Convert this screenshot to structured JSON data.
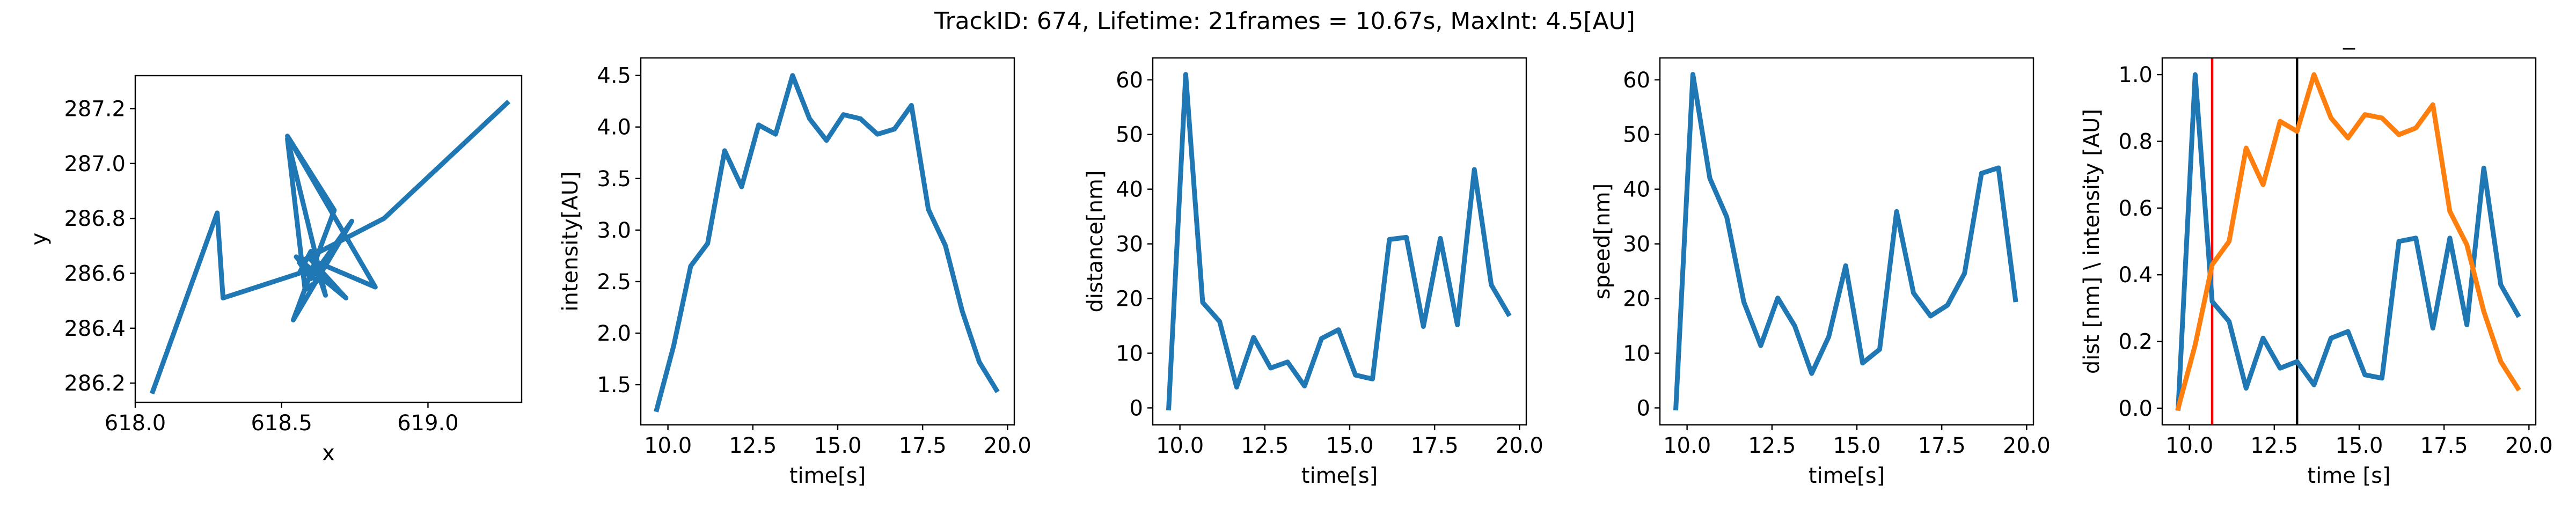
{
  "figure_title": "TrackID: 674, Lifetime: 21frames = 10.67s, MaxInt: 4.5[AU]",
  "colors": {
    "blue": "#1f77b4",
    "orange": "#ff7f0e",
    "red": "#ff0000",
    "black": "#000000"
  },
  "chart_data": [
    {
      "type": "line",
      "xlabel": "x",
      "ylabel": "y",
      "xlim": [
        618.0,
        619.32
      ],
      "ylim": [
        286.13,
        287.32
      ],
      "xticks": [
        618.0,
        618.5,
        619.0
      ],
      "xtick_labels": [
        "618.0",
        "618.5",
        "619.0"
      ],
      "yticks": [
        286.2,
        286.4,
        286.6,
        286.8,
        287.0,
        287.2
      ],
      "ytick_labels": [
        "286.2",
        "286.4",
        "286.6",
        "286.8",
        "287.0",
        "287.2"
      ],
      "series": [
        {
          "color": "#1f77b4",
          "x": [
            618.06,
            618.28,
            618.3,
            618.56,
            618.6,
            618.65,
            618.52,
            618.58,
            618.62,
            618.55,
            618.72,
            618.6,
            618.82,
            618.52,
            618.68,
            618.54,
            618.74,
            618.6,
            618.56,
            618.85,
            619.27
          ],
          "y": [
            286.17,
            286.82,
            286.51,
            286.6,
            286.68,
            286.52,
            287.09,
            286.54,
            286.57,
            286.66,
            286.51,
            286.65,
            286.55,
            287.1,
            286.83,
            286.43,
            286.79,
            286.58,
            286.64,
            286.8,
            287.22
          ]
        }
      ]
    },
    {
      "type": "line",
      "xlabel": "time[s]",
      "ylabel": "intensity[AU]",
      "xlim": [
        9.2,
        20.2
      ],
      "ylim": [
        1.11,
        4.67
      ],
      "xticks": [
        10.0,
        12.5,
        15.0,
        17.5,
        20.0
      ],
      "xtick_labels": [
        "10.0",
        "12.5",
        "15.0",
        "17.5",
        "20.0"
      ],
      "yticks": [
        1.5,
        2.0,
        2.5,
        3.0,
        3.5,
        4.0,
        4.5
      ],
      "ytick_labels": [
        "1.5",
        "2.0",
        "2.5",
        "3.0",
        "3.5",
        "4.0",
        "4.5"
      ],
      "series": [
        {
          "color": "#1f77b4",
          "x": [
            9.67,
            10.17,
            10.67,
            11.17,
            11.67,
            12.17,
            12.67,
            13.17,
            13.67,
            14.17,
            14.67,
            15.17,
            15.67,
            16.17,
            16.67,
            17.17,
            17.67,
            18.17,
            18.67,
            19.17,
            19.67
          ],
          "y": [
            1.26,
            1.88,
            2.65,
            2.87,
            3.77,
            3.42,
            4.02,
            3.93,
            4.5,
            4.08,
            3.87,
            4.12,
            4.08,
            3.93,
            3.98,
            4.21,
            3.2,
            2.85,
            2.21,
            1.72,
            1.45
          ]
        }
      ]
    },
    {
      "type": "line",
      "xlabel": "time[s]",
      "ylabel": "distance[nm]",
      "xlim": [
        9.2,
        20.2
      ],
      "ylim": [
        -3.1,
        64.0
      ],
      "xticks": [
        10.0,
        12.5,
        15.0,
        17.5,
        20.0
      ],
      "xtick_labels": [
        "10.0",
        "12.5",
        "15.0",
        "17.5",
        "20.0"
      ],
      "yticks": [
        0,
        10,
        20,
        30,
        40,
        50,
        60
      ],
      "ytick_labels": [
        "0",
        "10",
        "20",
        "30",
        "40",
        "50",
        "60"
      ],
      "series": [
        {
          "color": "#1f77b4",
          "x": [
            9.67,
            10.17,
            10.67,
            11.17,
            11.67,
            12.17,
            12.67,
            13.17,
            13.67,
            14.17,
            14.67,
            15.17,
            15.67,
            16.17,
            16.67,
            17.17,
            17.67,
            18.17,
            18.67,
            19.17,
            19.67
          ],
          "y": [
            0,
            61.0,
            19.3,
            15.8,
            3.8,
            12.9,
            7.3,
            8.4,
            4.0,
            12.7,
            14.3,
            6.0,
            5.3,
            30.8,
            31.2,
            14.9,
            31.0,
            15.2,
            43.6,
            22.5,
            17.2
          ]
        }
      ]
    },
    {
      "type": "line",
      "xlabel": "time[s]",
      "ylabel": "speed[nm]",
      "xlim": [
        9.2,
        20.2
      ],
      "ylim": [
        -3.1,
        64.0
      ],
      "xticks": [
        10.0,
        12.5,
        15.0,
        17.5,
        20.0
      ],
      "xtick_labels": [
        "10.0",
        "12.5",
        "15.0",
        "17.5",
        "20.0"
      ],
      "yticks": [
        0,
        10,
        20,
        30,
        40,
        50,
        60
      ],
      "ytick_labels": [
        "0",
        "10",
        "20",
        "30",
        "40",
        "50",
        "60"
      ],
      "series": [
        {
          "color": "#1f77b4",
          "x": [
            9.67,
            10.17,
            10.67,
            11.17,
            11.67,
            12.17,
            12.67,
            13.17,
            13.67,
            14.17,
            14.67,
            15.17,
            15.67,
            16.17,
            16.67,
            17.17,
            17.67,
            18.17,
            18.67,
            19.17,
            19.67
          ],
          "y": [
            0,
            61.0,
            42.0,
            34.9,
            19.4,
            11.4,
            20.1,
            15.0,
            6.3,
            13.0,
            26.0,
            8.2,
            10.7,
            35.9,
            21.0,
            16.8,
            18.8,
            24.6,
            42.9,
            43.9,
            19.8
          ]
        }
      ]
    },
    {
      "type": "line",
      "title": "_",
      "xlabel": "time [s]",
      "ylabel": "dist [nm] \\ intensity [AU]",
      "xlim": [
        9.2,
        20.2
      ],
      "ylim": [
        -0.05,
        1.05
      ],
      "xticks": [
        10.0,
        12.5,
        15.0,
        17.5,
        20.0
      ],
      "xtick_labels": [
        "10.0",
        "12.5",
        "15.0",
        "17.5",
        "20.0"
      ],
      "yticks": [
        0.0,
        0.2,
        0.4,
        0.6,
        0.8,
        1.0
      ],
      "ytick_labels": [
        "0.0",
        "0.2",
        "0.4",
        "0.6",
        "0.8",
        "1.0"
      ],
      "vlines": [
        {
          "x": 10.67,
          "color": "#ff0000"
        },
        {
          "x": 13.17,
          "color": "#000000"
        }
      ],
      "series": [
        {
          "color": "#1f77b4",
          "x": [
            9.67,
            10.17,
            10.67,
            11.17,
            11.67,
            12.17,
            12.67,
            13.17,
            13.67,
            14.17,
            14.67,
            15.17,
            15.67,
            16.17,
            16.67,
            17.17,
            17.67,
            18.17,
            18.67,
            19.17,
            19.67
          ],
          "y": [
            0.0,
            1.0,
            0.32,
            0.26,
            0.06,
            0.21,
            0.12,
            0.14,
            0.07,
            0.21,
            0.23,
            0.1,
            0.09,
            0.5,
            0.51,
            0.24,
            0.51,
            0.25,
            0.72,
            0.37,
            0.28
          ]
        },
        {
          "color": "#ff7f0e",
          "x": [
            9.67,
            10.17,
            10.67,
            11.17,
            11.67,
            12.17,
            12.67,
            13.17,
            13.67,
            14.17,
            14.67,
            15.17,
            15.67,
            16.17,
            16.67,
            17.17,
            17.67,
            18.17,
            18.67,
            19.17,
            19.67
          ],
          "y": [
            0.0,
            0.19,
            0.43,
            0.5,
            0.78,
            0.67,
            0.86,
            0.83,
            1.0,
            0.87,
            0.81,
            0.88,
            0.87,
            0.82,
            0.84,
            0.91,
            0.59,
            0.49,
            0.29,
            0.14,
            0.06
          ]
        }
      ]
    }
  ]
}
